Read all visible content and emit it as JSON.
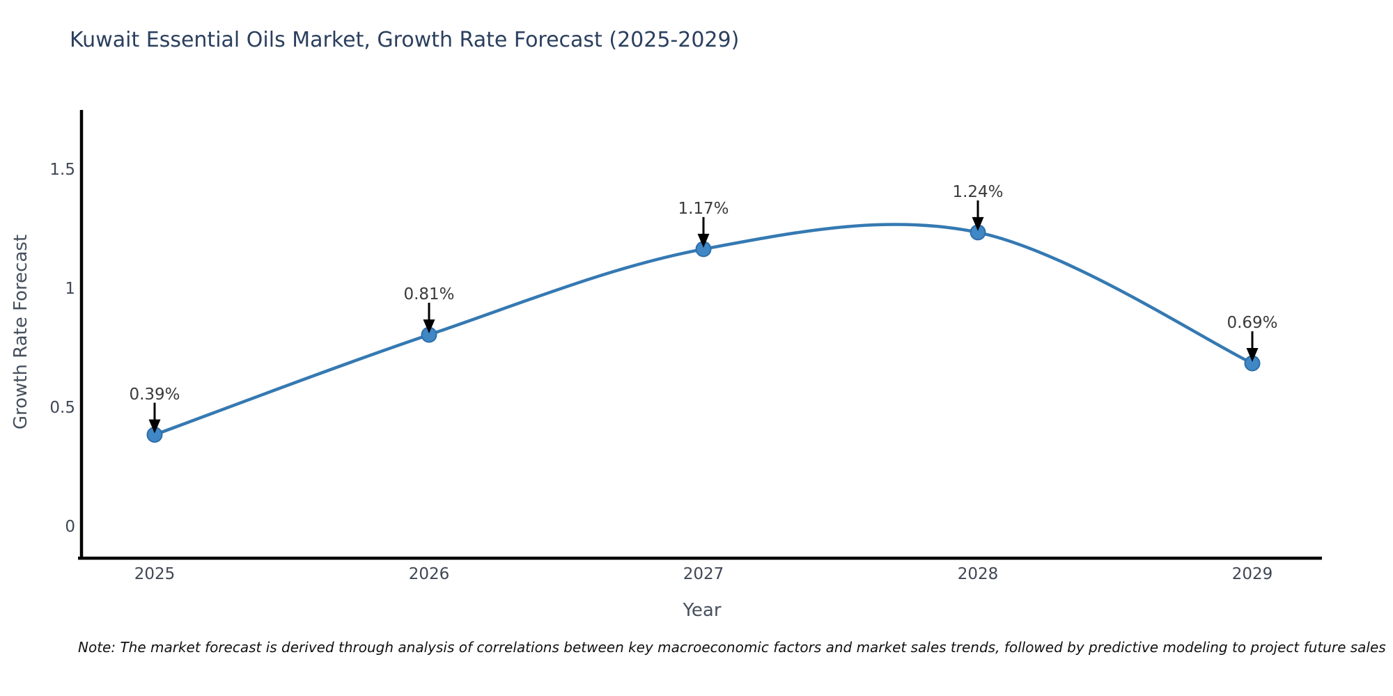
{
  "title": "Kuwait Essential Oils Market, Growth Rate Forecast (2025-2029)",
  "note": "Note: The market forecast is derived through analysis of correlations between key macroeconomic factors and market sales trends, followed by predictive modeling to project future sales",
  "chart_data": {
    "type": "line",
    "line_shape": "spline",
    "markers": true,
    "grid": false,
    "legend": "none",
    "title": "Kuwait Essential Oils Market, Growth Rate Forecast (2025-2029)",
    "xlabel": "Year",
    "ylabel": "Growth Rate Forecast",
    "categories": [
      "2025",
      "2026",
      "2027",
      "2028",
      "2029"
    ],
    "values": [
      0.39,
      0.81,
      1.17,
      1.24,
      0.69
    ],
    "point_labels": [
      "0.39%",
      "0.81%",
      "1.17%",
      "1.24%",
      "0.69%"
    ],
    "yticks": [
      0,
      0.5,
      1,
      1.5
    ],
    "ylim": [
      -0.13,
      1.75
    ],
    "annotation_arrows": true
  },
  "colors": {
    "line": "#3579b2",
    "marker_fill": "#3f87c5",
    "marker_edge": "#2f6ea8",
    "axis_line": "#000000",
    "arrow": "#000000",
    "title_text": "#2b3f5e",
    "axis_title_text": "#46505e",
    "tick_text": "#3e4755",
    "annotation_text": "#3a3a3a",
    "note_text": "#111111",
    "background": "#ffffff"
  }
}
